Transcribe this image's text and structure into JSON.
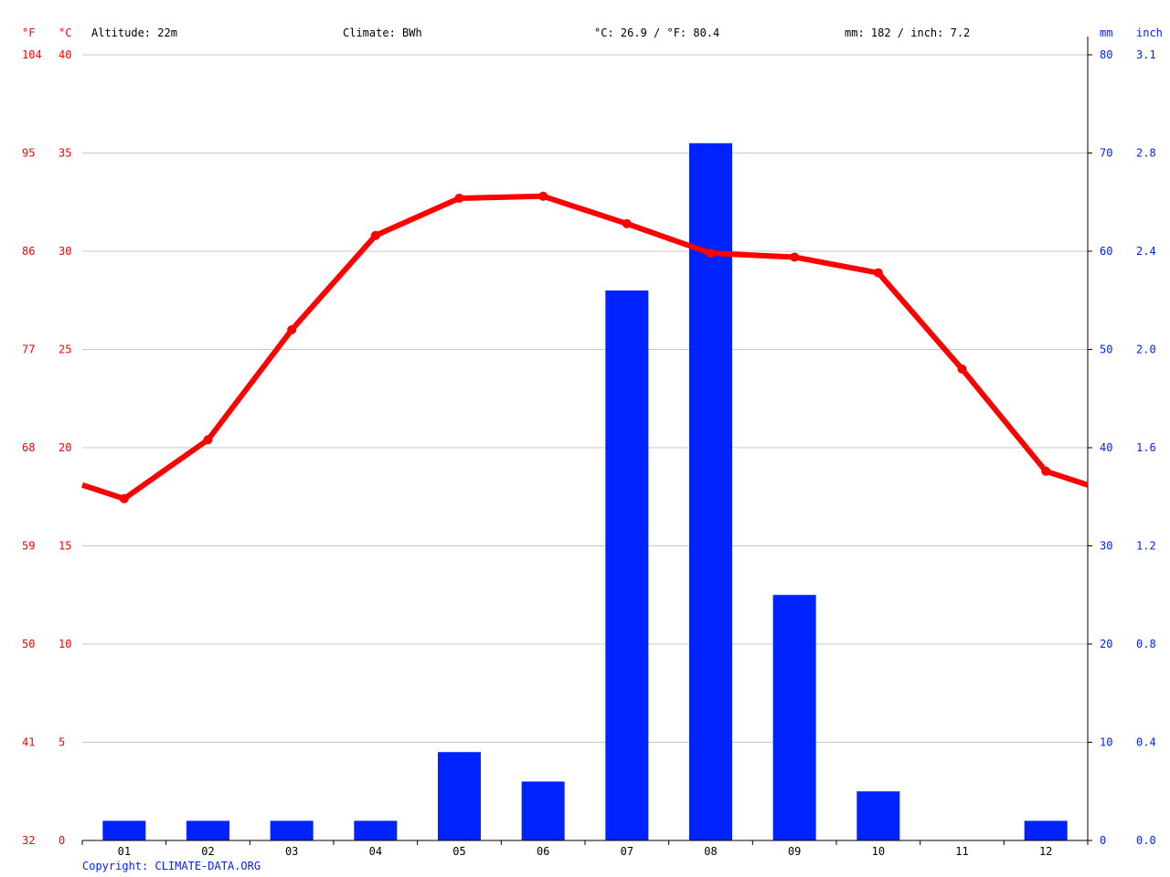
{
  "header": {
    "unit_f": "°F",
    "unit_c": "°C",
    "altitude": "Altitude: 22m",
    "climate": "Climate: BWh",
    "avg_temp": "°C: 26.9 / °F: 80.4",
    "precip_total": "mm: 182 / inch: 7.2",
    "unit_mm": "mm",
    "unit_inch": "inch"
  },
  "copyright": "Copyright: CLIMATE-DATA.ORG",
  "colors": {
    "temperature": "#ff0000",
    "precipitation": "#0022ff"
  },
  "chart_data": {
    "type": "bar+line",
    "categories": [
      "01",
      "02",
      "03",
      "04",
      "05",
      "06",
      "07",
      "08",
      "09",
      "10",
      "11",
      "12"
    ],
    "series": [
      {
        "type": "bar",
        "axis": "right",
        "unit": "mm",
        "values": [
          2,
          2,
          2,
          2,
          9,
          6,
          56,
          71,
          25,
          5,
          0,
          2
        ]
      },
      {
        "type": "line",
        "axis": "left",
        "unit": "°C",
        "values": [
          17.4,
          20.4,
          26.0,
          30.8,
          32.7,
          32.8,
          31.4,
          29.9,
          29.7,
          28.9,
          24.0,
          18.8
        ]
      }
    ],
    "left_ticks_c": [
      "0",
      "5",
      "10",
      "15",
      "20",
      "25",
      "30",
      "35",
      "40"
    ],
    "left_ticks_f": [
      "32",
      "41",
      "50",
      "59",
      "68",
      "77",
      "86",
      "95",
      "104"
    ],
    "right_ticks_mm": [
      "0",
      "10",
      "20",
      "30",
      "40",
      "50",
      "60",
      "70",
      "80"
    ],
    "right_ticks_inch": [
      "0.0",
      "0.4",
      "0.8",
      "1.2",
      "1.6",
      "2.0",
      "2.4",
      "2.8",
      "3.1"
    ],
    "ylim_c": [
      0,
      40
    ],
    "ylim_mm": [
      0,
      80
    ],
    "grid": true
  }
}
